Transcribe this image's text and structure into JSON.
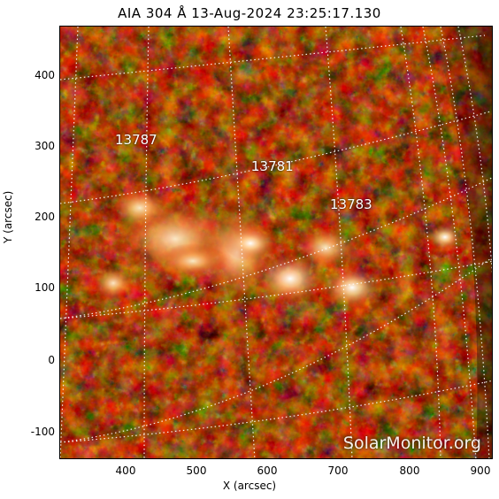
{
  "title": "AIA 304 Å 13-Aug-2024 23:25:17.130",
  "axes": {
    "xlabel": "X (arcsec)",
    "ylabel": "Y (arcsec)",
    "xticks": [
      "400",
      "500",
      "600",
      "700",
      "800",
      "900"
    ],
    "yticks": [
      "400",
      "300",
      "200",
      "100",
      "0",
      "-100"
    ]
  },
  "active_regions": [
    "13787",
    "13781",
    "13783"
  ],
  "watermark": "SolarMonitor.org",
  "colors": {
    "background": "#160000",
    "plasma_mid": "#9a1800",
    "plasma_bright": "#ffd08a",
    "grid": "#ffffff"
  }
}
